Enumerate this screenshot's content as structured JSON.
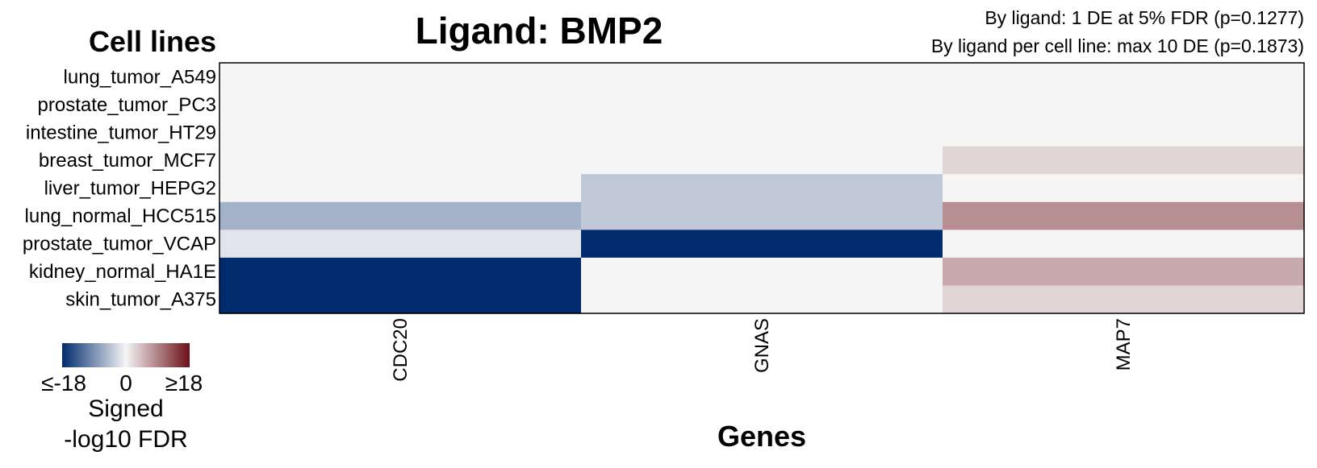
{
  "chart_data": {
    "type": "heatmap",
    "title": "Ligand: BMP2",
    "ylabel": "Cell lines",
    "xlabel": "Genes",
    "annotations": [
      "By ligand: 1 DE at 5% FDR (p=0.1277)",
      "By ligand per cell line: max 10 DE (p=0.1873)"
    ],
    "rows": [
      "lung_tumor_A549",
      "prostate_tumor_PC3",
      "intestine_tumor_HT29",
      "breast_tumor_MCF7",
      "liver_tumor_HEPG2",
      "lung_normal_HCC515",
      "prostate_tumor_VCAP",
      "kidney_normal_HA1E",
      "skin_tumor_A375"
    ],
    "columns": [
      "CDC20",
      "GNAS",
      "MAP7"
    ],
    "values": [
      [
        0,
        0,
        0
      ],
      [
        0,
        0,
        0
      ],
      [
        0,
        0,
        0
      ],
      [
        0,
        0,
        2.5
      ],
      [
        0,
        -4,
        0
      ],
      [
        -6,
        -4,
        8
      ],
      [
        -1.5,
        -18,
        0
      ],
      [
        -18,
        0,
        6
      ],
      [
        -18,
        0,
        2.5
      ]
    ],
    "color_scale": {
      "min": -18,
      "max": 18,
      "low_color": "#002b6e",
      "mid_color": "#f5f5f5",
      "high_color": "#6a0f16"
    },
    "legend": {
      "tick_labels": [
        "≤-18",
        "0",
        "≥18"
      ],
      "title_lines": [
        "Signed",
        "-log10 FDR"
      ]
    }
  }
}
